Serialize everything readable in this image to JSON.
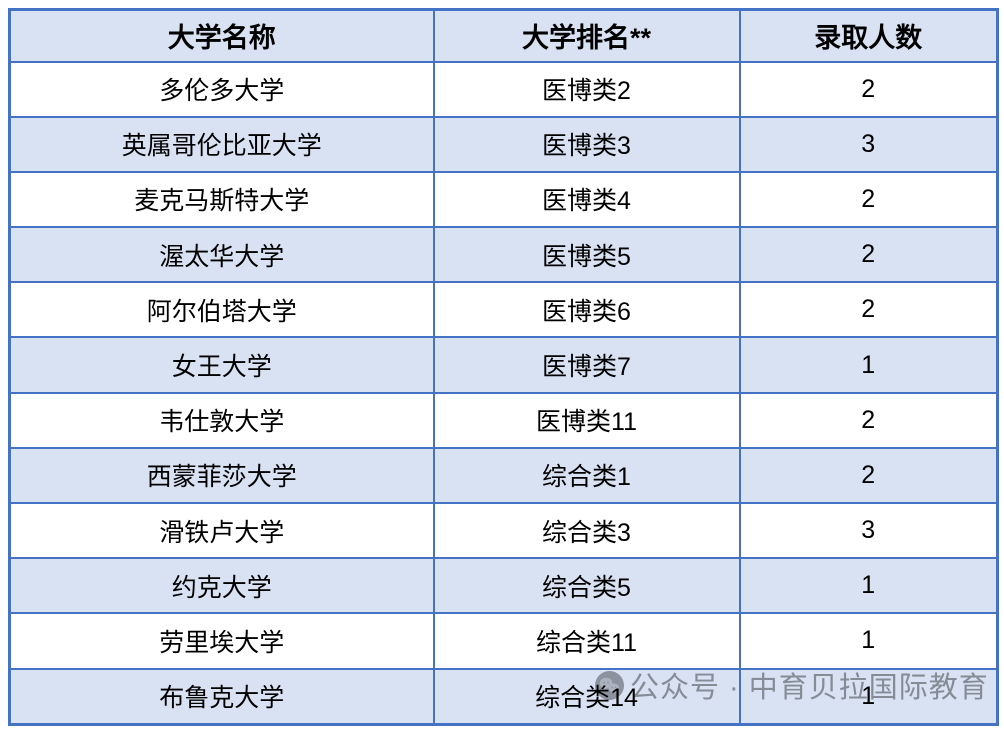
{
  "table": {
    "headers": [
      "大学名称",
      "大学排名**",
      "录取人数"
    ],
    "rows": [
      [
        "多伦多大学",
        "医博类2",
        "2"
      ],
      [
        "英属哥伦比亚大学",
        "医博类3",
        "3"
      ],
      [
        "麦克马斯特大学",
        "医博类4",
        "2"
      ],
      [
        "渥太华大学",
        "医博类5",
        "2"
      ],
      [
        "阿尔伯塔大学",
        "医博类6",
        "2"
      ],
      [
        "女王大学",
        "医博类7",
        "1"
      ],
      [
        "韦仕敦大学",
        "医博类11",
        "2"
      ],
      [
        "西蒙菲莎大学",
        "综合类1",
        "2"
      ],
      [
        "滑铁卢大学",
        "综合类3",
        "3"
      ],
      [
        "约克大学",
        "综合类5",
        "1"
      ],
      [
        "劳里埃大学",
        "综合类11",
        "1"
      ],
      [
        "布鲁克大学",
        "综合类14",
        "1"
      ]
    ]
  },
  "watermark": {
    "text": "公众号 · 中育贝拉国际教育",
    "icon": "wechat-icon"
  },
  "colors": {
    "border_blue": "#4472C4",
    "row_alt_fill": "#D9E2F3",
    "row_fill": "#FFFFFF",
    "text": "#000000",
    "watermark_gray": "#9E9E9E"
  }
}
